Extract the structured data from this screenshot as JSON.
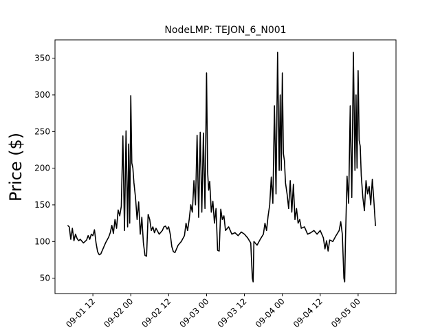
{
  "chart_data": {
    "type": "line",
    "title": "NodeLMP: TEJON_6_N001",
    "xlabel": "",
    "ylabel": "Price ($)",
    "ylim": [
      29,
      375
    ],
    "xlim": [
      "2020-09-01 00:00",
      "2020-09-05 12:00"
    ],
    "grid": false,
    "x_tick_labels": [
      "09-01 12",
      "09-02 00",
      "09-02 12",
      "09-03 00",
      "09-03 12",
      "09-04 00",
      "09-04 12",
      "09-05 00"
    ],
    "y_ticks": [
      50,
      100,
      150,
      200,
      250,
      300,
      350
    ],
    "series": [
      {
        "color": "#000000",
        "points": [
          [
            "2020-09-01 04:00",
            122
          ],
          [
            "2020-09-01 04:30",
            120
          ],
          [
            "2020-09-01 05:00",
            103
          ],
          [
            "2020-09-01 05:30",
            118
          ],
          [
            "2020-09-01 06:00",
            101
          ],
          [
            "2020-09-01 06:30",
            110
          ],
          [
            "2020-09-01 07:00",
            104
          ],
          [
            "2020-09-01 07:30",
            101
          ],
          [
            "2020-09-01 08:00",
            103
          ],
          [
            "2020-09-01 09:00",
            98
          ],
          [
            "2020-09-01 10:00",
            102
          ],
          [
            "2020-09-01 10:30",
            108
          ],
          [
            "2020-09-01 11:00",
            103
          ],
          [
            "2020-09-01 11:30",
            110
          ],
          [
            "2020-09-01 12:00",
            108
          ],
          [
            "2020-09-01 12:30",
            116
          ],
          [
            "2020-09-01 13:00",
            98
          ],
          [
            "2020-09-01 13:30",
            86
          ],
          [
            "2020-09-01 14:00",
            82
          ],
          [
            "2020-09-01 14:30",
            83
          ],
          [
            "2020-09-01 15:00",
            88
          ],
          [
            "2020-09-01 16:00",
            98
          ],
          [
            "2020-09-01 17:00",
            106
          ],
          [
            "2020-09-01 17:30",
            112
          ],
          [
            "2020-09-01 18:00",
            122
          ],
          [
            "2020-09-01 18:30",
            111
          ],
          [
            "2020-09-01 19:00",
            130
          ],
          [
            "2020-09-01 19:30",
            118
          ],
          [
            "2020-09-01 20:00",
            143
          ],
          [
            "2020-09-01 20:30",
            135
          ],
          [
            "2020-09-01 21:00",
            148
          ],
          [
            "2020-09-01 21:30",
            244
          ],
          [
            "2020-09-01 22:00",
            115
          ],
          [
            "2020-09-01 22:30",
            251
          ],
          [
            "2020-09-01 23:00",
            120
          ],
          [
            "2020-09-01 23:20",
            233
          ],
          [
            "2020-09-01 23:40",
            125
          ],
          [
            "2020-09-02 00:00",
            299
          ],
          [
            "2020-09-02 00:20",
            207
          ],
          [
            "2020-09-02 00:40",
            200
          ],
          [
            "2020-09-02 01:00",
            180
          ],
          [
            "2020-09-02 01:30",
            160
          ],
          [
            "2020-09-02 02:00",
            130
          ],
          [
            "2020-09-02 02:30",
            154
          ],
          [
            "2020-09-02 03:00",
            110
          ],
          [
            "2020-09-02 03:30",
            133
          ],
          [
            "2020-09-02 04:00",
            98
          ],
          [
            "2020-09-02 04:30",
            81
          ],
          [
            "2020-09-02 05:00",
            80
          ],
          [
            "2020-09-02 05:30",
            137
          ],
          [
            "2020-09-02 06:00",
            130
          ],
          [
            "2020-09-02 06:30",
            115
          ],
          [
            "2020-09-02 07:00",
            120
          ],
          [
            "2020-09-02 07:30",
            112
          ],
          [
            "2020-09-02 08:00",
            118
          ],
          [
            "2020-09-02 09:00",
            110
          ],
          [
            "2020-09-02 10:00",
            115
          ],
          [
            "2020-09-02 10:30",
            120
          ],
          [
            "2020-09-02 11:00",
            121
          ],
          [
            "2020-09-02 11:30",
            117
          ],
          [
            "2020-09-02 12:00",
            120
          ],
          [
            "2020-09-02 12:30",
            110
          ],
          [
            "2020-09-02 13:00",
            93
          ],
          [
            "2020-09-02 13:30",
            86
          ],
          [
            "2020-09-02 14:00",
            85
          ],
          [
            "2020-09-02 15:00",
            95
          ],
          [
            "2020-09-02 16:00",
            100
          ],
          [
            "2020-09-02 17:00",
            108
          ],
          [
            "2020-09-02 17:30",
            125
          ],
          [
            "2020-09-02 18:00",
            115
          ],
          [
            "2020-09-02 18:30",
            130
          ],
          [
            "2020-09-02 19:00",
            150
          ],
          [
            "2020-09-02 19:30",
            140
          ],
          [
            "2020-09-02 20:00",
            183
          ],
          [
            "2020-09-02 20:30",
            150
          ],
          [
            "2020-09-02 21:00",
            245
          ],
          [
            "2020-09-02 21:30",
            133
          ],
          [
            "2020-09-02 22:00",
            249
          ],
          [
            "2020-09-02 22:30",
            140
          ],
          [
            "2020-09-02 23:00",
            248
          ],
          [
            "2020-09-02 23:30",
            145
          ],
          [
            "2020-09-03 00:00",
            330
          ],
          [
            "2020-09-03 00:20",
            195
          ],
          [
            "2020-09-03 00:40",
            170
          ],
          [
            "2020-09-03 01:00",
            182
          ],
          [
            "2020-09-03 01:30",
            140
          ],
          [
            "2020-09-03 02:00",
            155
          ],
          [
            "2020-09-03 02:30",
            125
          ],
          [
            "2020-09-03 03:00",
            145
          ],
          [
            "2020-09-03 03:30",
            88
          ],
          [
            "2020-09-03 04:00",
            87
          ],
          [
            "2020-09-03 04:30",
            144
          ],
          [
            "2020-09-03 05:00",
            130
          ],
          [
            "2020-09-03 05:30",
            135
          ],
          [
            "2020-09-03 06:00",
            115
          ],
          [
            "2020-09-03 07:00",
            120
          ],
          [
            "2020-09-03 08:00",
            110
          ],
          [
            "2020-09-03 09:00",
            112
          ],
          [
            "2020-09-03 10:00",
            108
          ],
          [
            "2020-09-03 11:00",
            113
          ],
          [
            "2020-09-03 12:00",
            110
          ],
          [
            "2020-09-03 13:00",
            105
          ],
          [
            "2020-09-03 14:00",
            98
          ],
          [
            "2020-09-03 14:30",
            50
          ],
          [
            "2020-09-03 14:45",
            45
          ],
          [
            "2020-09-03 15:00",
            100
          ],
          [
            "2020-09-03 16:00",
            95
          ],
          [
            "2020-09-03 17:00",
            103
          ],
          [
            "2020-09-03 18:00",
            110
          ],
          [
            "2020-09-03 18:30",
            125
          ],
          [
            "2020-09-03 19:00",
            115
          ],
          [
            "2020-09-03 19:30",
            135
          ],
          [
            "2020-09-03 20:00",
            150
          ],
          [
            "2020-09-03 20:30",
            188
          ],
          [
            "2020-09-03 21:00",
            152
          ],
          [
            "2020-09-03 21:30",
            285
          ],
          [
            "2020-09-03 22:00",
            165
          ],
          [
            "2020-09-03 22:30",
            358
          ],
          [
            "2020-09-03 23:00",
            197
          ],
          [
            "2020-09-03 23:20",
            300
          ],
          [
            "2020-09-03 23:40",
            197
          ],
          [
            "2020-09-04 00:00",
            330
          ],
          [
            "2020-09-04 00:20",
            220
          ],
          [
            "2020-09-04 00:40",
            210
          ],
          [
            "2020-09-04 01:00",
            180
          ],
          [
            "2020-09-04 01:30",
            165
          ],
          [
            "2020-09-04 02:00",
            145
          ],
          [
            "2020-09-04 02:30",
            183
          ],
          [
            "2020-09-04 03:00",
            140
          ],
          [
            "2020-09-04 03:30",
            178
          ],
          [
            "2020-09-04 04:00",
            130
          ],
          [
            "2020-09-04 04:30",
            145
          ],
          [
            "2020-09-04 05:00",
            125
          ],
          [
            "2020-09-04 05:30",
            130
          ],
          [
            "2020-09-04 06:00",
            118
          ],
          [
            "2020-09-04 07:00",
            120
          ],
          [
            "2020-09-04 08:00",
            110
          ],
          [
            "2020-09-04 09:00",
            112
          ],
          [
            "2020-09-04 10:00",
            115
          ],
          [
            "2020-09-04 11:00",
            110
          ],
          [
            "2020-09-04 12:00",
            115
          ],
          [
            "2020-09-04 13:00",
            105
          ],
          [
            "2020-09-04 13:30",
            90
          ],
          [
            "2020-09-04 14:00",
            101
          ],
          [
            "2020-09-04 14:30",
            87
          ],
          [
            "2020-09-04 15:00",
            102
          ],
          [
            "2020-09-04 16:00",
            100
          ],
          [
            "2020-09-04 17:00",
            108
          ],
          [
            "2020-09-04 18:00",
            115
          ],
          [
            "2020-09-04 18:30",
            127
          ],
          [
            "2020-09-04 19:00",
            110
          ],
          [
            "2020-09-04 19:30",
            50
          ],
          [
            "2020-09-04 19:45",
            45
          ],
          [
            "2020-09-04 20:00",
            103
          ],
          [
            "2020-09-04 20:30",
            189
          ],
          [
            "2020-09-04 21:00",
            152
          ],
          [
            "2020-09-04 21:30",
            285
          ],
          [
            "2020-09-04 22:00",
            160
          ],
          [
            "2020-09-04 22:30",
            358
          ],
          [
            "2020-09-04 23:00",
            197
          ],
          [
            "2020-09-04 23:20",
            300
          ],
          [
            "2020-09-04 23:40",
            200
          ],
          [
            "2020-09-05 00:00",
            333
          ],
          [
            "2020-09-05 00:20",
            238
          ],
          [
            "2020-09-05 00:40",
            230
          ],
          [
            "2020-09-05 01:00",
            190
          ],
          [
            "2020-09-05 01:30",
            160
          ],
          [
            "2020-09-05 02:00",
            142
          ],
          [
            "2020-09-05 02:30",
            183
          ],
          [
            "2020-09-05 03:00",
            165
          ],
          [
            "2020-09-05 03:30",
            175
          ],
          [
            "2020-09-05 04:00",
            150
          ],
          [
            "2020-09-05 04:30",
            185
          ],
          [
            "2020-09-05 05:00",
            155
          ],
          [
            "2020-09-05 05:30",
            121
          ]
        ]
      }
    ]
  }
}
